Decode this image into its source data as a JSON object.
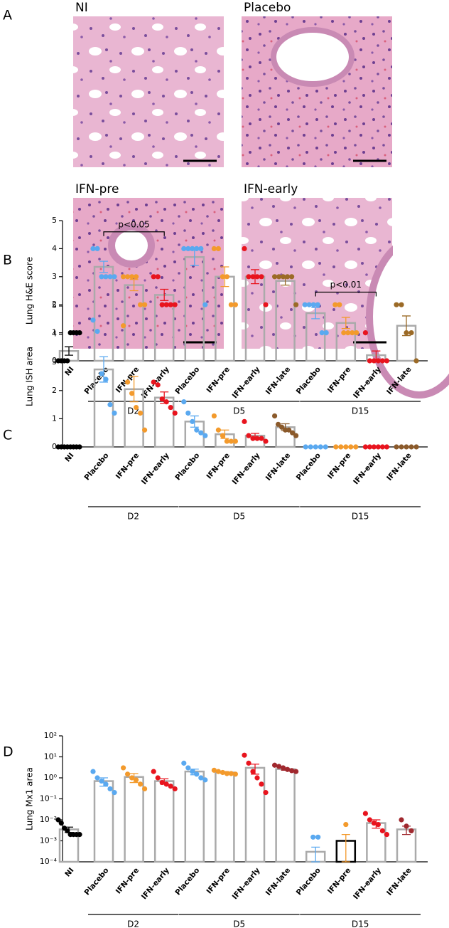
{
  "panel_a": {
    "label": "A",
    "images": [
      "NI",
      "Placebo",
      "IFN-pre",
      "IFN-early"
    ]
  },
  "chart_data": [
    {
      "type": "bar",
      "panel": "B",
      "ylabel": "Lung H&E score",
      "ylim": [
        0,
        5
      ],
      "yticks": [
        0,
        1,
        2,
        3,
        4,
        5
      ],
      "bar_color": "#aaaaaa",
      "groups": [
        {
          "label": null,
          "categories": [
            "NI"
          ],
          "values": [
            0.35
          ],
          "errors": [
            0.15
          ],
          "colors": [
            "#000000"
          ],
          "points": [
            [
              0,
              0,
              0,
              0,
              1,
              1,
              1,
              1
            ]
          ]
        },
        {
          "label": "D2",
          "categories": [
            "Placebo",
            "IFN-pre",
            "IFN-early"
          ],
          "values": [
            3.35,
            2.7,
            2.35
          ],
          "errors": [
            0.2,
            0.2,
            0.2
          ],
          "colors": [
            "#5aa9f0",
            "#f39a2c",
            "#e8141e"
          ],
          "points": [
            [
              4,
              4,
              3,
              3,
              3,
              3
            ],
            [
              3,
              3,
              3,
              3,
              2,
              2
            ],
            [
              3,
              3,
              2,
              2,
              2,
              2
            ]
          ],
          "annotations": [
            {
              "text": "p<0.05",
              "from": "Placebo",
              "to": "IFN-early",
              "y": 4.6
            }
          ]
        },
        {
          "label": "D5",
          "categories": [
            "Placebo",
            "IFN-pre",
            "IFN-early",
            "IFN-late"
          ],
          "values": [
            3.7,
            3.0,
            3.0,
            2.85
          ],
          "errors": [
            0.3,
            0.35,
            0.25,
            0.15
          ],
          "colors": [
            "#5aa9f0",
            "#f39a2c",
            "#e8141e",
            "#9b6a26"
          ],
          "points": [
            [
              4,
              4,
              4,
              4,
              4,
              2
            ],
            [
              4,
              4,
              3,
              3,
              2,
              2
            ],
            [
              4,
              3,
              3,
              3,
              3,
              2
            ],
            [
              3,
              3,
              3,
              3,
              3,
              2
            ]
          ]
        },
        {
          "label": "D15",
          "categories": [
            "Placebo",
            "IFN-pre",
            "IFN-early",
            "IFN-late"
          ],
          "values": [
            1.7,
            1.35,
            0.2,
            1.25
          ],
          "errors": [
            0.2,
            0.2,
            0.15,
            0.35
          ],
          "colors": [
            "#5aa9f0",
            "#f39a2c",
            "#e8141e",
            "#9b6a26"
          ],
          "points": [
            [
              2,
              2,
              2,
              2,
              1,
              1
            ],
            [
              2,
              2,
              1,
              1,
              1,
              1
            ],
            [
              1,
              0,
              0,
              0,
              0,
              0
            ],
            [
              2,
              2,
              1,
              1,
              0
            ]
          ],
          "annotations": [
            {
              "text": "p<0.01",
              "from": "Placebo",
              "to": "IFN-early",
              "y": 2.45
            }
          ]
        }
      ]
    },
    {
      "type": "bar",
      "panel": "C",
      "ylabel": "Lung ISH area",
      "ylim": [
        0,
        5
      ],
      "yticks": [
        0,
        1,
        2,
        3,
        4,
        5
      ],
      "bar_color": "#aaaaaa",
      "groups": [
        {
          "label": null,
          "categories": [
            "NI"
          ],
          "values": [
            0
          ],
          "errors": [
            0
          ],
          "colors": [
            "#000000"
          ],
          "points": [
            [
              0,
              0,
              0,
              0,
              0,
              0,
              0,
              0
            ]
          ]
        },
        {
          "label": "D2",
          "categories": [
            "Placebo",
            "IFN-pre",
            "IFN-early"
          ],
          "values": [
            2.75,
            2.05,
            1.75
          ],
          "errors": [
            0.45,
            0.45,
            0.2
          ],
          "colors": [
            "#5aa9f0",
            "#f39a2c",
            "#e8141e"
          ],
          "points": [
            [
              4.5,
              4.1,
              2.6,
              2.4,
              1.5,
              1.2
            ],
            [
              4.3,
              2.3,
              1.9,
              1.4,
              1.2,
              0.6
            ],
            [
              2.3,
              2.2,
              1.7,
              1.6,
              1.4,
              1.2
            ]
          ]
        },
        {
          "label": "D5",
          "categories": [
            "Placebo",
            "IFN-pre",
            "IFN-early",
            "IFN-late"
          ],
          "values": [
            0.9,
            0.45,
            0.4,
            0.7
          ],
          "errors": [
            0.2,
            0.15,
            0.08,
            0.12
          ],
          "colors": [
            "#5aa9f0",
            "#f39a2c",
            "#e8141e",
            "#8b5a2b"
          ],
          "points": [
            [
              1.6,
              1.2,
              0.9,
              0.6,
              0.5,
              0.4
            ],
            [
              1.1,
              0.6,
              0.4,
              0.2,
              0.2,
              0.2
            ],
            [
              0.9,
              0.4,
              0.3,
              0.3,
              0.3,
              0.2
            ],
            [
              1.1,
              0.8,
              0.7,
              0.6,
              0.6,
              0.5,
              0.4
            ]
          ]
        },
        {
          "label": "D15",
          "categories": [
            "Placebo",
            "IFN-pre",
            "IFN-early",
            "IFN-late"
          ],
          "values": [
            0,
            0,
            0,
            0
          ],
          "errors": [
            0,
            0,
            0,
            0
          ],
          "colors": [
            "#5aa9f0",
            "#f39a2c",
            "#e8141e",
            "#8b5a2b"
          ],
          "points": [
            [
              0,
              0,
              0,
              0,
              0
            ],
            [
              0,
              0,
              0,
              0,
              0
            ],
            [
              0,
              0,
              0,
              0,
              0,
              0
            ],
            [
              0,
              0,
              0,
              0,
              0
            ]
          ]
        }
      ]
    },
    {
      "type": "bar",
      "panel": "D",
      "ylabel": "Lung Mx1 area",
      "log_scale": true,
      "ylim": [
        0.0001,
        100
      ],
      "yticks": [
        {
          "value": 0.0001,
          "label": "10⁻⁴"
        },
        {
          "value": 0.001,
          "label": "10⁻³"
        },
        {
          "value": 0.01,
          "label": "10⁻²"
        },
        {
          "value": 0.1,
          "label": "10⁻¹"
        },
        {
          "value": 1,
          "label": "10⁰"
        },
        {
          "value": 10,
          "label": "10¹"
        },
        {
          "value": 100,
          "label": "10²"
        }
      ],
      "bar_color": "#aaaaaa",
      "groups": [
        {
          "label": null,
          "categories": [
            "NI"
          ],
          "values": [
            0.0035
          ],
          "errors": [
            0.001
          ],
          "colors": [
            "#000000"
          ],
          "points": [
            [
              0.01,
              0.007,
              0.004,
              0.003,
              0.002,
              0.002,
              0.002,
              0.002
            ]
          ]
        },
        {
          "label": "D2",
          "categories": [
            "Placebo",
            "IFN-pre",
            "IFN-early"
          ],
          "values": [
            0.7,
            1.1,
            0.7
          ],
          "errors": [
            0.3,
            0.5,
            0.2
          ],
          "colors": [
            "#5aa9f0",
            "#f39a2c",
            "#e8141e"
          ],
          "points": [
            [
              2,
              1,
              0.7,
              0.5,
              0.3,
              0.2
            ],
            [
              3,
              1.5,
              1,
              0.8,
              0.5,
              0.3
            ],
            [
              2,
              1,
              0.6,
              0.5,
              0.4,
              0.3
            ]
          ]
        },
        {
          "label": "D5",
          "categories": [
            "Placebo",
            "IFN-pre",
            "IFN-early",
            "IFN-late"
          ],
          "values": [
            2,
            1.8,
            3,
            2.6
          ],
          "errors": [
            0.6,
            0.2,
            1.5,
            0.3
          ],
          "colors": [
            "#5aa9f0",
            "#f39a2c",
            "#e8141e",
            "#a0282e"
          ],
          "points": [
            [
              5,
              3,
              2,
              1.5,
              1,
              0.8
            ],
            [
              2.3,
              2,
              1.8,
              1.6,
              1.6,
              1.5
            ],
            [
              12,
              5,
              2,
              1,
              0.5,
              0.2
            ],
            [
              4,
              3.5,
              3,
              2.5,
              2.2,
              2
            ]
          ]
        },
        {
          "label": "D15",
          "categories": [
            "Placebo",
            "IFN-pre",
            "IFN-early",
            "IFN-late"
          ],
          "values": [
            0.0003,
            0.001,
            0.007,
            0.0035
          ],
          "errors": [
            0.0002,
            0.001,
            0.003,
            0.0015
          ],
          "colors": [
            "#5aa9f0",
            "#f39a2c",
            "#e8141e",
            "#a0282e"
          ],
          "bar_colors": [
            "#aaaaaa",
            "#000000",
            "#aaaaaa",
            "#aaaaaa"
          ],
          "points": [
            [
              0.0015,
              0.0015
            ],
            [
              0.006
            ],
            [
              0.02,
              0.01,
              0.007,
              0.006,
              0.003,
              0.002
            ],
            [
              0.01,
              0.005,
              0.003
            ]
          ]
        }
      ]
    }
  ]
}
